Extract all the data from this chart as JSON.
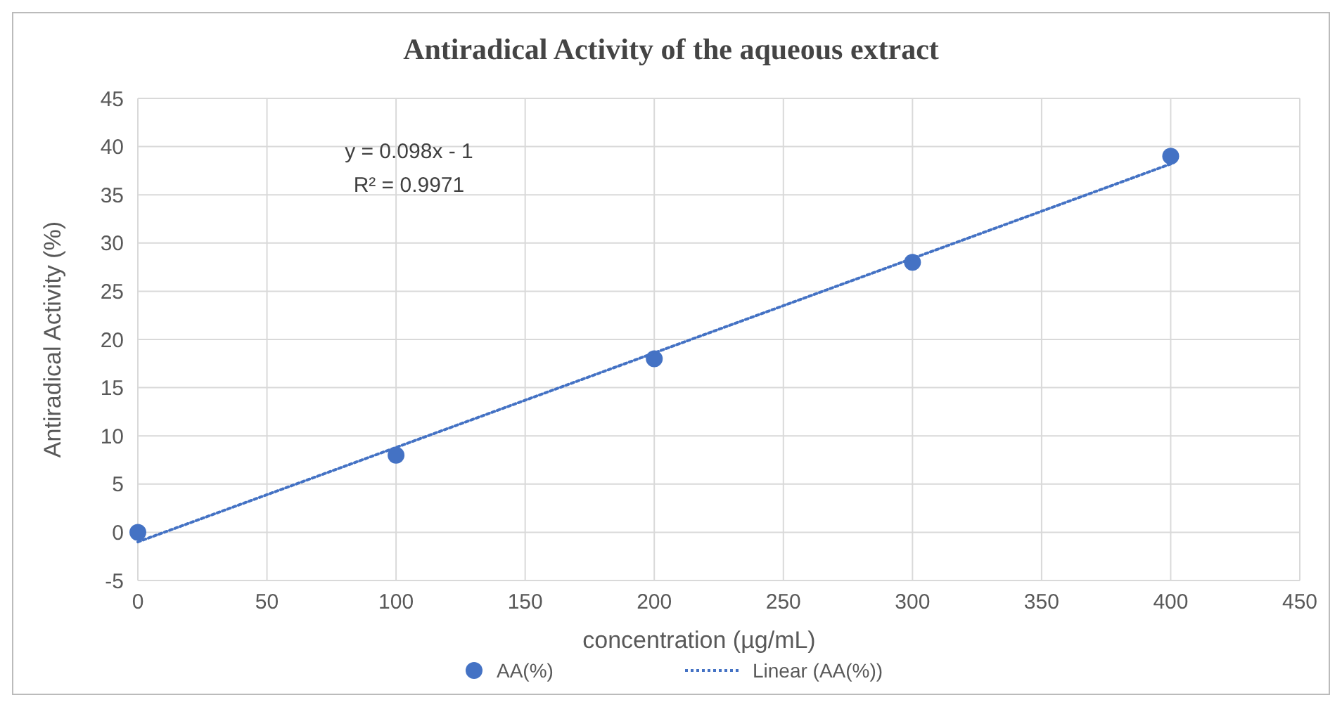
{
  "chart_data": {
    "type": "scatter",
    "title": "Antiradical Activity of the aqueous extract",
    "xlabel": "concentration (µg/mL)",
    "ylabel": "Antiradical Activity (%)",
    "xlim": [
      0,
      450
    ],
    "xticks": [
      0,
      50,
      100,
      150,
      200,
      250,
      300,
      350,
      400,
      450
    ],
    "ylim": [
      -5,
      45
    ],
    "yticks": [
      -5,
      0,
      5,
      10,
      15,
      20,
      25,
      30,
      35,
      40,
      45
    ],
    "grid": true,
    "legend": "bottom",
    "annotations": [
      "y = 0.098x - 1",
      "R² = 0.9971"
    ],
    "series": [
      {
        "name": "AA(%)",
        "color": "#4472c4",
        "marker": "circle",
        "x": [
          0,
          100,
          200,
          300,
          400
        ],
        "values": [
          0,
          8,
          18,
          28,
          39
        ]
      },
      {
        "name": "Linear (AA(%))",
        "type": "line",
        "color": "#4472c4",
        "marker": "none",
        "line_style": "dotted",
        "x": [
          0,
          400
        ],
        "values": [
          -1,
          38.2
        ]
      }
    ]
  }
}
